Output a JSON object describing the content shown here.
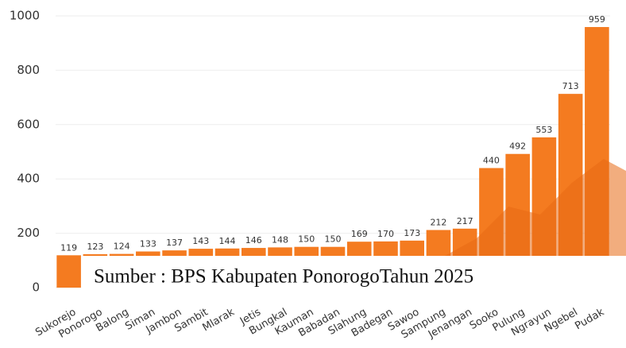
{
  "chart_data": {
    "type": "bar",
    "categories": [
      "Sukorejo",
      "Ponorogo",
      "Balong",
      "Siman",
      "Jambon",
      "Sambit",
      "Mlarak",
      "Jetis",
      "Bungkal",
      "Kauman",
      "Babadan",
      "Slahung",
      "Badegan",
      "Sawoo",
      "Sampung",
      "Jenangan",
      "Sooko",
      "Pulung",
      "Ngrayun",
      "Ngebel",
      "Pudak"
    ],
    "values": [
      119,
      123,
      124,
      133,
      137,
      143,
      144,
      146,
      148,
      150,
      150,
      169,
      170,
      173,
      212,
      217,
      440,
      492,
      553,
      713,
      959
    ],
    "color": "#f47b20",
    "ylim": [
      0,
      1000
    ],
    "yticks": [
      0,
      200,
      400,
      600,
      800,
      1000
    ],
    "grid": true,
    "source": "Sumber : BPS Kabupaten PonorogoTahun 2025"
  }
}
